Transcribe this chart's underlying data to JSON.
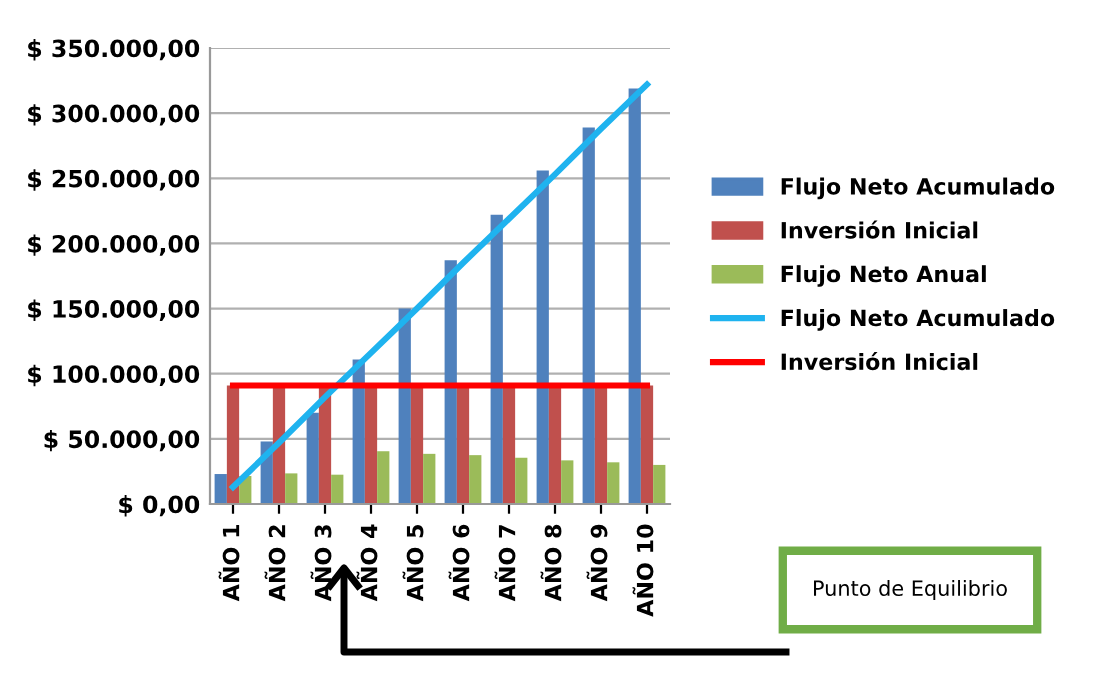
{
  "chart_data": {
    "type": "bar",
    "categories": [
      "AÑO 1",
      "AÑO 2",
      "AÑO 3",
      "AÑO 4",
      "AÑO 5",
      "AÑO 6",
      "AÑO 7",
      "AÑO 8",
      "AÑO 9",
      "AÑO 10"
    ],
    "series": [
      {
        "name": "Flujo Neto Acumulado",
        "color": "#4f81bd",
        "values": [
          23000,
          48000,
          70000,
          111000,
          150000,
          187000,
          222000,
          256000,
          289000,
          319000
        ]
      },
      {
        "name": "Inversión Inicial",
        "color": "#c0504d",
        "values": [
          91000,
          91000,
          91000,
          91000,
          91000,
          91000,
          91000,
          91000,
          91000,
          91000
        ]
      },
      {
        "name": "Flujo Neto Anual",
        "color": "#9bbb59",
        "values": [
          21500,
          23500,
          22500,
          40500,
          38500,
          37500,
          35500,
          33500,
          32000,
          30000
        ]
      },
      {
        "name": "Flujo Neto Acumulado",
        "type": "line",
        "color": "#1fb3ef",
        "values": [
          13000,
          47000,
          82000,
          116000,
          150000,
          185000,
          219000,
          253000,
          288000,
          322000
        ]
      },
      {
        "name": "Inversión Inicial",
        "type": "line",
        "color": "#ff0000",
        "values": [
          91000,
          91000,
          91000,
          91000,
          91000,
          91000,
          91000,
          91000,
          91000,
          91000
        ]
      }
    ],
    "ylim": [
      0,
      350000
    ],
    "yticks": [
      {
        "value": 0,
        "label": "$ 0,00"
      },
      {
        "value": 50000,
        "label": "$ 50.000,00"
      },
      {
        "value": 100000,
        "label": "$ 100.000,00"
      },
      {
        "value": 150000,
        "label": "$ 150.000,00"
      },
      {
        "value": 200000,
        "label": "$ 200.000,00"
      },
      {
        "value": 250000,
        "label": "$ 250.000,00"
      },
      {
        "value": 300000,
        "label": "$ 300.000,00"
      },
      {
        "value": 350000,
        "label": "$ 350.000,00"
      }
    ],
    "grid": "y",
    "legend": "right",
    "marker": "none",
    "line_style": "solid",
    "annotations": [
      "Punto de Equilibrio"
    ]
  }
}
